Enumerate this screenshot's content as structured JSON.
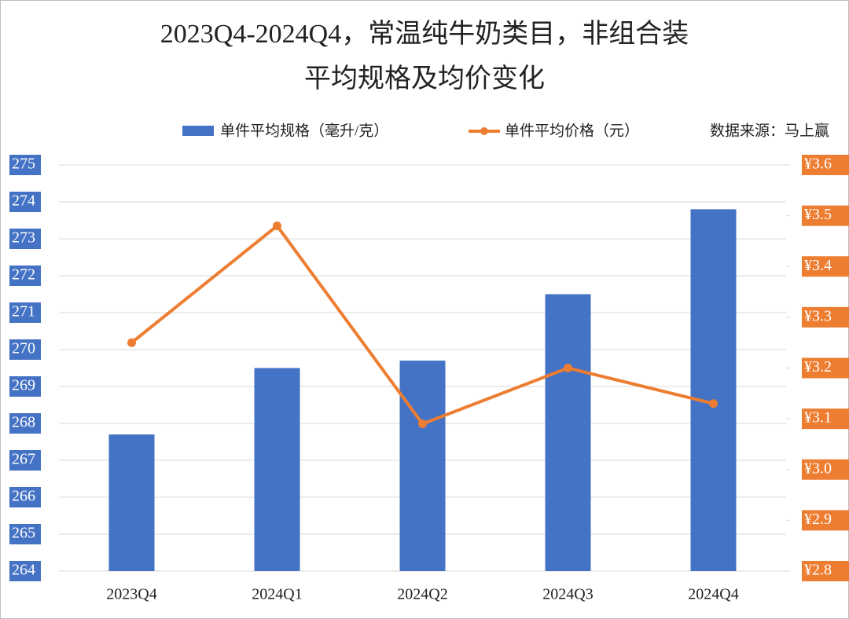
{
  "chart_data": {
    "type": "bar-line",
    "title": [
      "2023Q4-2024Q4，常温纯牛奶类目，非组合装",
      "平均规格及均价变化"
    ],
    "source": "数据来源：马上赢",
    "categories": [
      "2023Q4",
      "2024Q1",
      "2024Q2",
      "2024Q3",
      "2024Q4"
    ],
    "series": [
      {
        "name": "单件平均规格（毫升/克）",
        "type": "bar",
        "color": "#4472c4",
        "values": [
          267.7,
          269.5,
          269.7,
          271.5,
          273.8
        ]
      },
      {
        "name": "单件平均价格（元）",
        "type": "line",
        "color": "#ed7d31",
        "axis": "y2",
        "values": [
          3.25,
          3.48,
          3.09,
          3.2,
          3.13
        ]
      }
    ],
    "ylim": [
      264,
      275
    ],
    "yticks": [
      264,
      265,
      266,
      267,
      268,
      269,
      270,
      271,
      272,
      273,
      274,
      275
    ],
    "y2lim": [
      2.8,
      3.6
    ],
    "y2ticks": [
      {
        "value": 2.8,
        "label": "¥2.8"
      },
      {
        "value": 2.9,
        "label": "¥2.9"
      },
      {
        "value": 3.0,
        "label": "¥3.0"
      },
      {
        "value": 3.1,
        "label": "¥3.1"
      },
      {
        "value": 3.2,
        "label": "¥3.2"
      },
      {
        "value": 3.3,
        "label": "¥3.3"
      },
      {
        "value": 3.4,
        "label": "¥3.4"
      },
      {
        "value": 3.5,
        "label": "¥3.5"
      },
      {
        "value": 3.6,
        "label": "¥3.6"
      }
    ],
    "grid": true
  }
}
